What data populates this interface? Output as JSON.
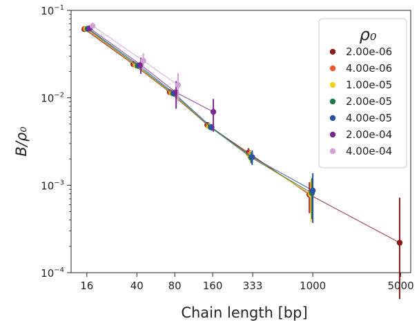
{
  "chart_data": {
    "type": "scatter",
    "title": "",
    "xlabel": "Chain length [bp]",
    "ylabel": "B/ρ₀",
    "xscale": "log",
    "yscale": "log",
    "xlim": [
      12,
      6000
    ],
    "ylim": [
      0.0001,
      0.1
    ],
    "xticks": [
      {
        "value": 16,
        "label": "16"
      },
      {
        "value": 40,
        "label": "40"
      },
      {
        "value": 80,
        "label": "80"
      },
      {
        "value": 160,
        "label": "160"
      },
      {
        "value": 333,
        "label": "333"
      },
      {
        "value": 1000,
        "label": "1000"
      },
      {
        "value": 5000,
        "label": "5000"
      }
    ],
    "yticks": [
      {
        "value": 0.1,
        "base": "10",
        "exp": "−1"
      },
      {
        "value": 0.01,
        "base": "10",
        "exp": "−2"
      },
      {
        "value": 0.001,
        "base": "10",
        "exp": "−3"
      },
      {
        "value": 0.0001,
        "base": "10",
        "exp": "−4"
      }
    ],
    "grid": false,
    "legend": {
      "title": "ρ₀",
      "placement": "top-right"
    },
    "series": [
      {
        "name": "2.00e-06",
        "color": "#8b1a1a",
        "points": [
          {
            "x": 15.3,
            "y": 0.061,
            "err": 0.0015
          },
          {
            "x": 37.5,
            "y": 0.0242,
            "err": 0.001
          },
          {
            "x": 73.0,
            "y": 0.0116,
            "err": 0.0005
          },
          {
            "x": 145,
            "y": 0.0049,
            "err": 0.0003
          },
          {
            "x": 308,
            "y": 0.00235,
            "err": 0.0003
          },
          {
            "x": 940,
            "y": 0.00078,
            "err": 0.0003
          },
          {
            "x": 4900,
            "y": 0.00022,
            "err": 0.0005
          }
        ]
      },
      {
        "name": "4.00e-06",
        "color": "#f25a2a",
        "points": [
          {
            "x": 15.6,
            "y": 0.0615,
            "err": 0.0015
          },
          {
            "x": 38.5,
            "y": 0.0238,
            "err": 0.001
          },
          {
            "x": 74.5,
            "y": 0.0115,
            "err": 0.0005
          },
          {
            "x": 148,
            "y": 0.0048,
            "err": 0.0003
          },
          {
            "x": 313,
            "y": 0.00225,
            "err": 0.0003
          },
          {
            "x": 955,
            "y": 0.00079,
            "err": 0.0003
          }
        ]
      },
      {
        "name": "1.00e-05",
        "color": "#f2d21c",
        "points": [
          {
            "x": 15.9,
            "y": 0.0618,
            "err": 0.0015
          },
          {
            "x": 39.5,
            "y": 0.0234,
            "err": 0.001
          },
          {
            "x": 76.0,
            "y": 0.0113,
            "err": 0.0005
          },
          {
            "x": 151,
            "y": 0.0047,
            "err": 0.0003
          },
          {
            "x": 318,
            "y": 0.00215,
            "err": 0.0003
          },
          {
            "x": 970,
            "y": 0.00078,
            "err": 0.0004
          }
        ]
      },
      {
        "name": "2.00e-05",
        "color": "#1e7a46",
        "points": [
          {
            "x": 16.2,
            "y": 0.0615,
            "err": 0.0015
          },
          {
            "x": 40.5,
            "y": 0.0232,
            "err": 0.001
          },
          {
            "x": 77.5,
            "y": 0.0112,
            "err": 0.0005
          },
          {
            "x": 154,
            "y": 0.0046,
            "err": 0.0003
          },
          {
            "x": 323,
            "y": 0.00208,
            "err": 0.0003
          },
          {
            "x": 985,
            "y": 0.00081,
            "err": 0.0004
          }
        ]
      },
      {
        "name": "4.00e-05",
        "color": "#2a52a3",
        "points": [
          {
            "x": 16.5,
            "y": 0.0618,
            "err": 0.0015
          },
          {
            "x": 41.5,
            "y": 0.0235,
            "err": 0.0015
          },
          {
            "x": 79.0,
            "y": 0.0113,
            "err": 0.001
          },
          {
            "x": 157,
            "y": 0.0046,
            "err": 0.0004
          },
          {
            "x": 330,
            "y": 0.0021,
            "err": 0.0004
          },
          {
            "x": 1000,
            "y": 0.00087,
            "err": 0.0005
          }
        ]
      },
      {
        "name": "2.00e-04",
        "color": "#7a2890",
        "points": [
          {
            "x": 16.9,
            "y": 0.0625,
            "err": 0.002
          },
          {
            "x": 43.0,
            "y": 0.0238,
            "err": 0.005
          },
          {
            "x": 82.0,
            "y": 0.0115,
            "err": 0.004
          },
          {
            "x": 162,
            "y": 0.0069,
            "err": 0.0028
          }
        ]
      },
      {
        "name": "4.00e-04",
        "color": "#d3a0d6",
        "points": [
          {
            "x": 17.8,
            "y": 0.0665,
            "err": 0.003
          },
          {
            "x": 45.0,
            "y": 0.0265,
            "err": 0.006
          },
          {
            "x": 85.0,
            "y": 0.014,
            "err": 0.005
          }
        ]
      }
    ]
  }
}
